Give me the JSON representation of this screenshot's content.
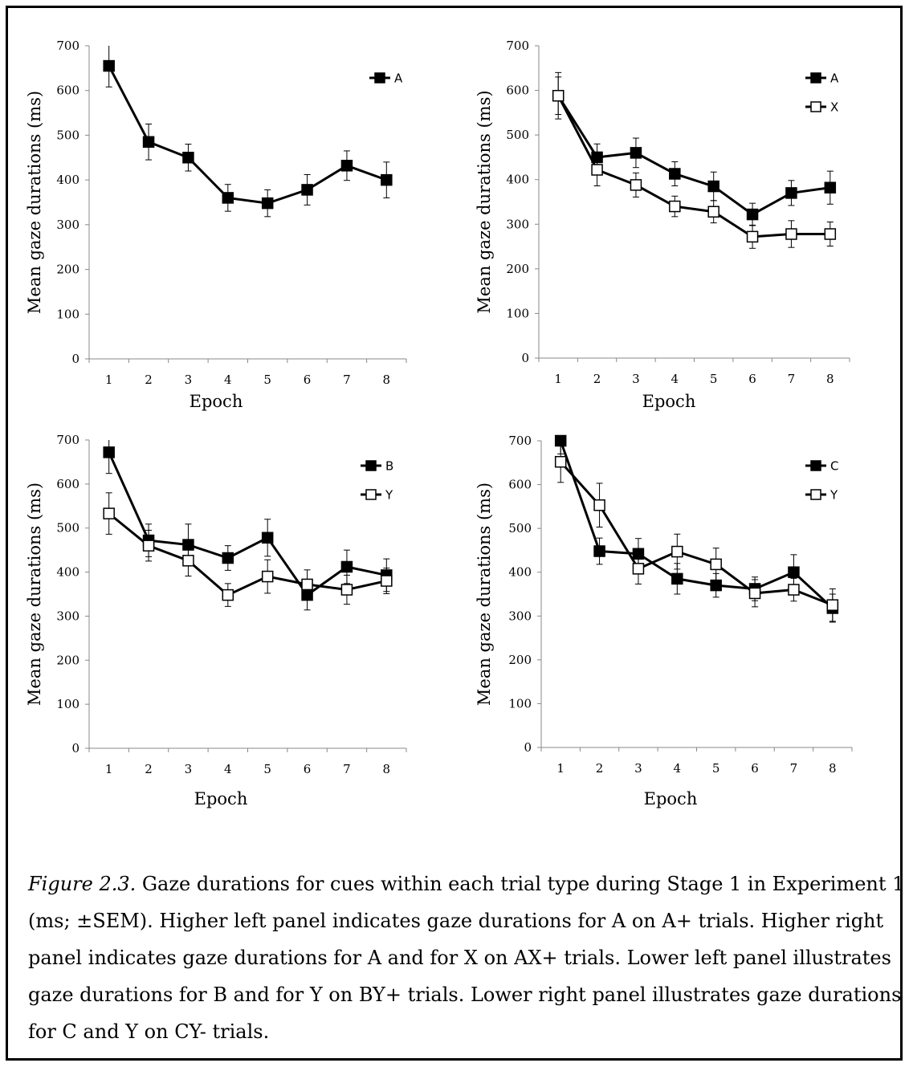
{
  "chart_data": [
    {
      "type": "line",
      "xlabel": "Epoch",
      "ylabel": "Mean gaze durations (ms)",
      "categories": [
        "1",
        "2",
        "3",
        "4",
        "5",
        "6",
        "7",
        "8"
      ],
      "ylim": [
        0,
        700
      ],
      "yticks": [
        "0",
        "100",
        "200",
        "300",
        "400",
        "500",
        "600",
        "700"
      ],
      "legend_position": "top-right",
      "series": [
        {
          "name": "A",
          "marker": "filled-square",
          "values": [
            655,
            485,
            450,
            360,
            348,
            378,
            432,
            400
          ],
          "sem": [
            47,
            40,
            30,
            30,
            30,
            34,
            33,
            40
          ]
        }
      ]
    },
    {
      "type": "line",
      "xlabel": "Epoch",
      "ylabel": "Mean gaze durations (ms)",
      "categories": [
        "1",
        "2",
        "3",
        "4",
        "5",
        "6",
        "7",
        "8"
      ],
      "ylim": [
        0,
        700
      ],
      "yticks": [
        "0",
        "100",
        "200",
        "300",
        "400",
        "500",
        "600",
        "700"
      ],
      "legend_position": "top-right",
      "series": [
        {
          "name": "A",
          "marker": "filled-square",
          "values": [
            588,
            450,
            460,
            413,
            385,
            322,
            370,
            382
          ],
          "sem": [
            52,
            30,
            33,
            27,
            32,
            25,
            28,
            37
          ]
        },
        {
          "name": "X",
          "marker": "open-square",
          "values": [
            588,
            422,
            388,
            340,
            328,
            272,
            278,
            278
          ],
          "sem": [
            42,
            36,
            27,
            23,
            25,
            26,
            30,
            27
          ]
        }
      ]
    },
    {
      "type": "line",
      "xlabel": "Epoch",
      "ylabel": "Mean gaze durations (ms)",
      "categories": [
        "1",
        "2",
        "3",
        "4",
        "5",
        "6",
        "7",
        "8"
      ],
      "ylim": [
        0,
        700
      ],
      "yticks": [
        "0",
        "100",
        "200",
        "300",
        "400",
        "500",
        "600",
        "700"
      ],
      "legend_position": "top-right",
      "series": [
        {
          "name": "B",
          "marker": "filled-square",
          "values": [
            672,
            472,
            462,
            432,
            478,
            348,
            412,
            393
          ],
          "sem": [
            48,
            37,
            47,
            28,
            42,
            34,
            38,
            37
          ]
        },
        {
          "name": "Y",
          "marker": "open-square",
          "values": [
            533,
            460,
            426,
            348,
            390,
            372,
            360,
            380
          ],
          "sem": [
            47,
            35,
            35,
            26,
            38,
            33,
            33,
            29
          ]
        }
      ]
    },
    {
      "type": "line",
      "xlabel": "Epoch",
      "ylabel": "Mean gaze durations (ms)",
      "categories": [
        "1",
        "2",
        "3",
        "4",
        "5",
        "6",
        "7",
        "8"
      ],
      "ylim": [
        0,
        700
      ],
      "yticks": [
        "0",
        "100",
        "200",
        "300",
        "400",
        "500",
        "600",
        "700"
      ],
      "legend_position": "top-right",
      "series": [
        {
          "name": "C",
          "marker": "filled-square",
          "values": [
            700,
            448,
            442,
            385,
            370,
            362,
            400,
            318
          ],
          "sem": [
            30,
            30,
            35,
            35,
            27,
            27,
            40,
            32
          ]
        },
        {
          "name": "Y",
          "marker": "open-square",
          "values": [
            652,
            553,
            408,
            447,
            418,
            352,
            360,
            325
          ],
          "sem": [
            47,
            50,
            35,
            40,
            37,
            31,
            26,
            37
          ]
        }
      ]
    }
  ],
  "caption": {
    "label": "Figure 2.3.",
    "text": " Gaze durations for cues within each trial type during Stage 1 in Experiment 1 (ms; ±SEM). Higher left panel indicates gaze durations for A on A+ trials. Higher right panel indicates gaze durations for A and for X on AX+ trials. Lower left panel illustrates gaze durations for B and for Y on BY+ trials. Lower right panel illustrates gaze durations for C and Y on CY- trials."
  }
}
